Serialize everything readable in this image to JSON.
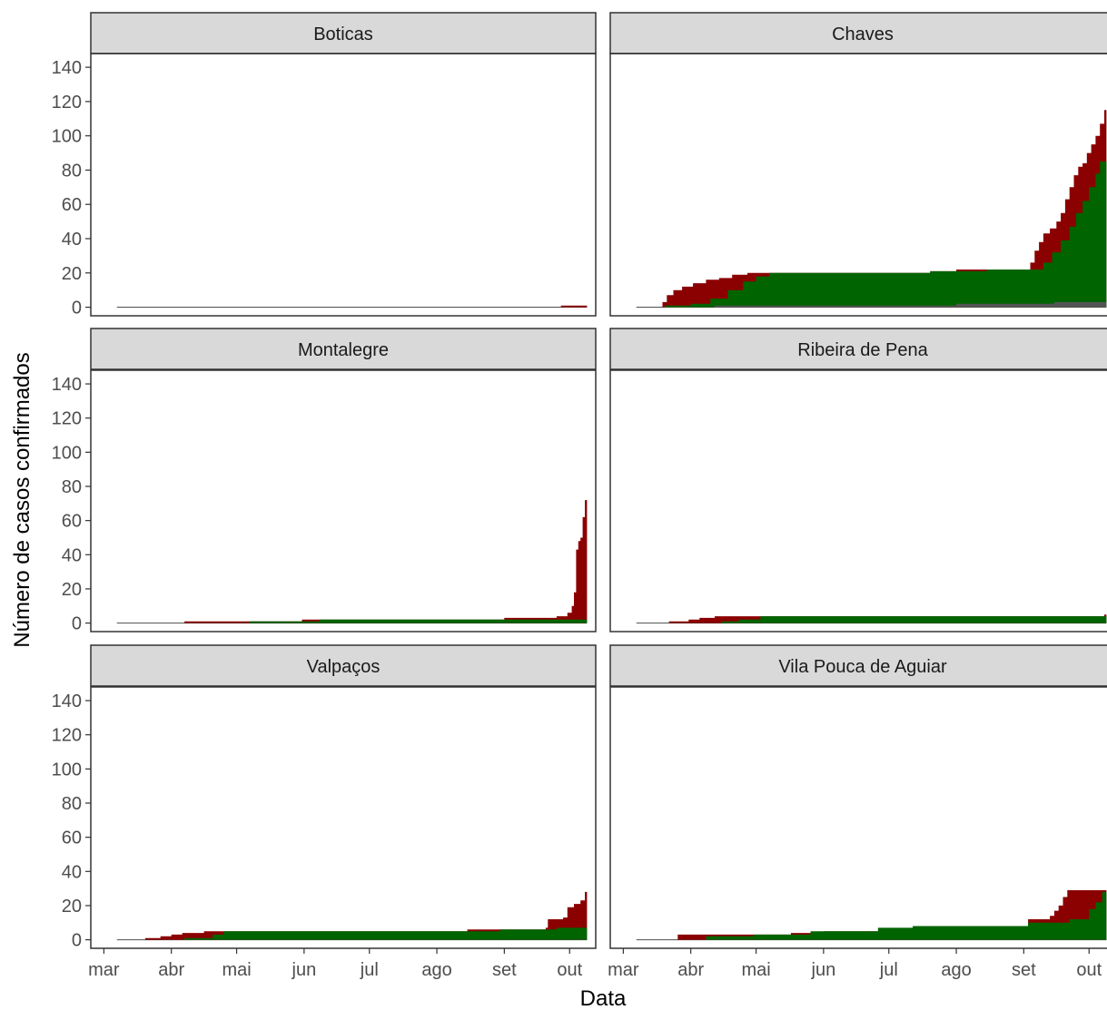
{
  "chart_data": {
    "type": "area",
    "xlabel": "Data",
    "ylabel": "Número de casos confirmados",
    "ylim": [
      -5,
      148
    ],
    "y_ticks": [
      0,
      20,
      40,
      60,
      80,
      100,
      120,
      140
    ],
    "y_tick_labels": [
      "0",
      "20",
      "40",
      "60",
      "80",
      "100",
      "120",
      "140"
    ],
    "x_ticks": [
      "2020-03-01",
      "2020-04-01",
      "2020-05-01",
      "2020-06-01",
      "2020-07-01",
      "2020-08-01",
      "2020-09-01",
      "2020-10-01"
    ],
    "x_tick_labels": [
      "mar",
      "abr",
      "mai",
      "jun",
      "jul",
      "ago",
      "set",
      "out"
    ],
    "xlim": [
      "2020-02-24",
      "2020-10-13"
    ],
    "grid": false,
    "legend": "none",
    "series_colors": {
      "red": "#8b0000",
      "green": "#006400",
      "dark": "#555555"
    },
    "panels": [
      {
        "name": "Boticas",
        "start": "2020-03-07",
        "end": "2020-10-09",
        "green": [
          [
            "2020-10-08",
            0
          ],
          [
            "2020-10-09",
            2
          ]
        ],
        "red": [
          [
            "2020-03-07",
            0
          ],
          [
            "2020-09-27",
            1
          ],
          [
            "2020-10-09",
            2
          ]
        ],
        "dark": []
      },
      {
        "name": "Chaves",
        "start": "2020-03-07",
        "end": "2020-10-09",
        "green": [
          [
            "2020-03-07",
            0
          ],
          [
            "2020-03-20",
            1
          ],
          [
            "2020-04-01",
            2
          ],
          [
            "2020-04-10",
            5
          ],
          [
            "2020-04-18",
            10
          ],
          [
            "2020-04-25",
            15
          ],
          [
            "2020-05-01",
            18
          ],
          [
            "2020-05-07",
            20
          ],
          [
            "2020-07-20",
            21
          ],
          [
            "2020-08-15",
            22
          ],
          [
            "2020-09-04",
            22
          ],
          [
            "2020-09-10",
            26
          ],
          [
            "2020-09-14",
            32
          ],
          [
            "2020-09-18",
            39
          ],
          [
            "2020-09-22",
            47
          ],
          [
            "2020-09-25",
            55
          ],
          [
            "2020-09-28",
            62
          ],
          [
            "2020-10-01",
            70
          ],
          [
            "2020-10-04",
            78
          ],
          [
            "2020-10-06",
            85
          ],
          [
            "2020-10-09",
            85
          ]
        ],
        "red": [
          [
            "2020-03-07",
            0
          ],
          [
            "2020-03-19",
            3
          ],
          [
            "2020-03-21",
            7
          ],
          [
            "2020-03-24",
            10
          ],
          [
            "2020-03-28",
            12
          ],
          [
            "2020-04-02",
            14
          ],
          [
            "2020-04-08",
            16
          ],
          [
            "2020-04-14",
            17
          ],
          [
            "2020-04-20",
            19
          ],
          [
            "2020-04-27",
            20
          ],
          [
            "2020-07-20",
            21
          ],
          [
            "2020-08-01",
            22
          ],
          [
            "2020-09-01",
            22
          ],
          [
            "2020-09-04",
            26
          ],
          [
            "2020-09-06",
            33
          ],
          [
            "2020-09-08",
            38
          ],
          [
            "2020-09-10",
            43
          ],
          [
            "2020-09-13",
            46
          ],
          [
            "2020-09-16",
            50
          ],
          [
            "2020-09-18",
            55
          ],
          [
            "2020-09-20",
            63
          ],
          [
            "2020-09-22",
            70
          ],
          [
            "2020-09-24",
            77
          ],
          [
            "2020-09-26",
            82
          ],
          [
            "2020-09-28",
            84
          ],
          [
            "2020-09-30",
            90
          ],
          [
            "2020-10-02",
            95
          ],
          [
            "2020-10-04",
            100
          ],
          [
            "2020-10-06",
            107
          ],
          [
            "2020-10-08",
            115
          ],
          [
            "2020-10-09",
            133
          ]
        ],
        "dark": [
          [
            "2020-03-20",
            0
          ],
          [
            "2020-04-12",
            1
          ],
          [
            "2020-06-01",
            1
          ],
          [
            "2020-08-01",
            2
          ],
          [
            "2020-09-15",
            3
          ],
          [
            "2020-10-09",
            3
          ]
        ]
      },
      {
        "name": "Montalegre",
        "start": "2020-03-07",
        "end": "2020-10-09",
        "green": [
          [
            "2020-03-07",
            0
          ],
          [
            "2020-04-25",
            0
          ],
          [
            "2020-05-07",
            1
          ],
          [
            "2020-05-21",
            1
          ],
          [
            "2020-06-08",
            2
          ],
          [
            "2020-10-09",
            2
          ]
        ],
        "red": [
          [
            "2020-03-07",
            0
          ],
          [
            "2020-04-07",
            1
          ],
          [
            "2020-05-31",
            2
          ],
          [
            "2020-09-01",
            3
          ],
          [
            "2020-09-19",
            3
          ],
          [
            "2020-09-25",
            4
          ],
          [
            "2020-09-30",
            6
          ],
          [
            "2020-10-02",
            10
          ],
          [
            "2020-10-03",
            18
          ],
          [
            "2020-10-04",
            43
          ],
          [
            "2020-10-05",
            48
          ],
          [
            "2020-10-06",
            50
          ],
          [
            "2020-10-07",
            62
          ],
          [
            "2020-10-08",
            72
          ],
          [
            "2020-10-09",
            72
          ]
        ],
        "dark": []
      },
      {
        "name": "Ribeira de Pena",
        "start": "2020-03-07",
        "end": "2020-10-09",
        "green": [
          [
            "2020-03-07",
            0
          ],
          [
            "2020-04-15",
            1
          ],
          [
            "2020-04-23",
            2
          ],
          [
            "2020-05-03",
            4
          ],
          [
            "2020-10-09",
            4
          ]
        ],
        "red": [
          [
            "2020-03-07",
            0
          ],
          [
            "2020-03-22",
            1
          ],
          [
            "2020-03-31",
            2
          ],
          [
            "2020-04-05",
            3
          ],
          [
            "2020-04-12",
            4
          ],
          [
            "2020-10-08",
            5
          ],
          [
            "2020-10-09",
            5
          ]
        ],
        "dark": []
      },
      {
        "name": "Valpaços",
        "start": "2020-03-07",
        "end": "2020-10-09",
        "green": [
          [
            "2020-03-07",
            0
          ],
          [
            "2020-04-07",
            1
          ],
          [
            "2020-04-20",
            3
          ],
          [
            "2020-04-25",
            5
          ],
          [
            "2020-08-30",
            6
          ],
          [
            "2020-09-15",
            6
          ],
          [
            "2020-09-25",
            7
          ],
          [
            "2020-10-09",
            8
          ]
        ],
        "red": [
          [
            "2020-03-07",
            0
          ],
          [
            "2020-03-20",
            1
          ],
          [
            "2020-03-27",
            2
          ],
          [
            "2020-04-01",
            3
          ],
          [
            "2020-04-06",
            4
          ],
          [
            "2020-04-16",
            5
          ],
          [
            "2020-08-15",
            6
          ],
          [
            "2020-09-20",
            7
          ],
          [
            "2020-09-21",
            12
          ],
          [
            "2020-09-28",
            13
          ],
          [
            "2020-09-30",
            19
          ],
          [
            "2020-10-03",
            21
          ],
          [
            "2020-10-06",
            23
          ],
          [
            "2020-10-08",
            28
          ],
          [
            "2020-10-09",
            28
          ]
        ],
        "dark": []
      },
      {
        "name": "Vila Pouca de Aguiar",
        "start": "2020-03-07",
        "end": "2020-10-09",
        "green": [
          [
            "2020-03-07",
            0
          ],
          [
            "2020-03-25",
            0
          ],
          [
            "2020-04-08",
            2
          ],
          [
            "2020-04-30",
            3
          ],
          [
            "2020-05-26",
            5
          ],
          [
            "2020-06-26",
            7
          ],
          [
            "2020-07-12",
            8
          ],
          [
            "2020-08-14",
            8
          ],
          [
            "2020-09-03",
            10
          ],
          [
            "2020-09-22",
            12
          ],
          [
            "2020-10-01",
            18
          ],
          [
            "2020-10-04",
            22
          ],
          [
            "2020-10-07",
            28
          ],
          [
            "2020-10-09",
            30
          ]
        ],
        "red": [
          [
            "2020-03-07",
            0
          ],
          [
            "2020-03-26",
            3
          ],
          [
            "2020-05-17",
            4
          ],
          [
            "2020-06-01",
            5
          ],
          [
            "2020-06-30",
            6
          ],
          [
            "2020-07-12",
            7
          ],
          [
            "2020-08-14",
            8
          ],
          [
            "2020-09-03",
            12
          ],
          [
            "2020-09-13",
            14
          ],
          [
            "2020-09-15",
            17
          ],
          [
            "2020-09-17",
            20
          ],
          [
            "2020-09-19",
            25
          ],
          [
            "2020-09-21",
            29
          ],
          [
            "2020-10-09",
            29
          ]
        ],
        "dark": []
      }
    ]
  }
}
